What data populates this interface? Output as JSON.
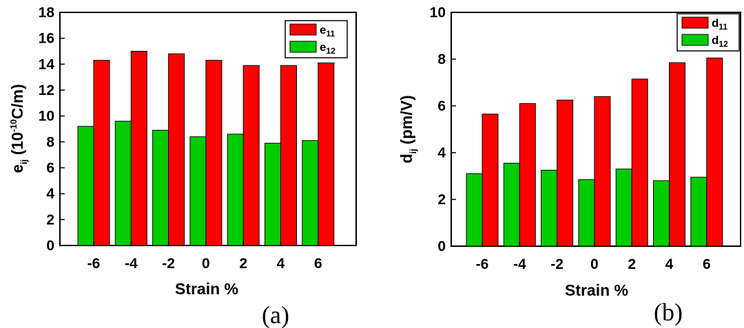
{
  "chart_data": [
    {
      "type": "bar",
      "panel_label": "(a)",
      "categories": [
        "-6",
        "-4",
        "-2",
        "0",
        "2",
        "4",
        "6"
      ],
      "series": [
        {
          "name": "e11",
          "base": "e",
          "sub": "11",
          "color": "#ff0000",
          "values": [
            14.3,
            15.0,
            14.8,
            14.3,
            13.9,
            13.9,
            14.1
          ]
        },
        {
          "name": "e12",
          "base": "e",
          "sub": "12",
          "color": "#00cc00",
          "values": [
            9.2,
            9.6,
            8.9,
            8.4,
            8.6,
            7.9,
            8.1
          ]
        }
      ],
      "xlabel": "Strain %",
      "ylabel": {
        "base": "e",
        "sub": "ij",
        "rest_open": " (10",
        "sup": "-10",
        "rest_close": "C/m)"
      },
      "ylim": [
        0,
        18
      ],
      "yticks": [
        "0",
        "2",
        "4",
        "6",
        "8",
        "10",
        "12",
        "14",
        "16",
        "18"
      ],
      "legend_position": "top-right",
      "grid": false
    },
    {
      "type": "bar",
      "panel_label": "(b)",
      "categories": [
        "-6",
        "-4",
        "-2",
        "0",
        "2",
        "4",
        "6"
      ],
      "series": [
        {
          "name": "d11",
          "base": "d",
          "sub": "11",
          "color": "#ff0000",
          "values": [
            5.65,
            6.1,
            6.25,
            6.4,
            7.15,
            7.85,
            8.05
          ]
        },
        {
          "name": "d12",
          "base": "d",
          "sub": "12",
          "color": "#00cc00",
          "values": [
            3.1,
            3.55,
            3.25,
            2.85,
            3.3,
            2.8,
            2.95
          ]
        }
      ],
      "xlabel": "Strain %",
      "ylabel": {
        "base": "d",
        "sub": "ij",
        "rest": " (pm/V)"
      },
      "ylim": [
        0,
        10
      ],
      "yticks": [
        "0",
        "2",
        "4",
        "6",
        "8",
        "10"
      ],
      "legend_position": "top-right",
      "grid": false
    }
  ]
}
